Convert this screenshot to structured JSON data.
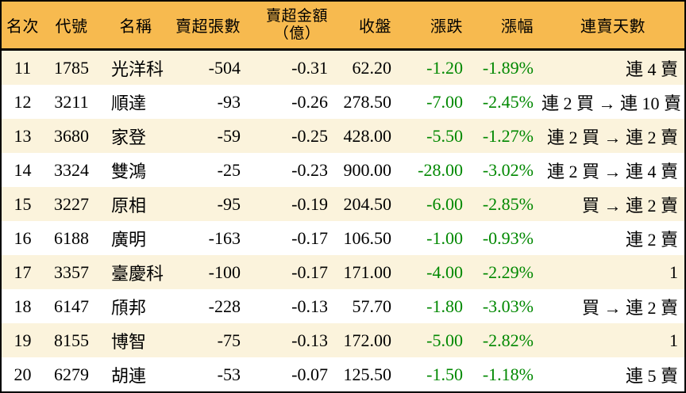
{
  "chart_data": {
    "type": "table",
    "columns": [
      {
        "key": "rank",
        "label": "名次"
      },
      {
        "key": "code",
        "label": "代號"
      },
      {
        "key": "name",
        "label": "名稱"
      },
      {
        "key": "sell_volume",
        "label": "賣超張數"
      },
      {
        "key": "sell_amount",
        "label": "賣超金額",
        "label2": "（億）"
      },
      {
        "key": "close",
        "label": "收盤"
      },
      {
        "key": "change",
        "label": "漲跌"
      },
      {
        "key": "change_pct",
        "label": "漲幅"
      },
      {
        "key": "streak",
        "label": "連賣天數"
      }
    ],
    "rows": [
      {
        "rank": "11",
        "code": "1785",
        "name": "光洋科",
        "sell_volume": "-504",
        "sell_amount": "-0.31",
        "close": "62.20",
        "change": "-1.20",
        "change_pct": "-1.89%",
        "streak": "連 4 賣"
      },
      {
        "rank": "12",
        "code": "3211",
        "name": "順達",
        "sell_volume": "-93",
        "sell_amount": "-0.26",
        "close": "278.50",
        "change": "-7.00",
        "change_pct": "-2.45%",
        "streak": "連 2 買 → 連 10 賣"
      },
      {
        "rank": "13",
        "code": "3680",
        "name": "家登",
        "sell_volume": "-59",
        "sell_amount": "-0.25",
        "close": "428.00",
        "change": "-5.50",
        "change_pct": "-1.27%",
        "streak": "連 2 買 → 連 2 賣"
      },
      {
        "rank": "14",
        "code": "3324",
        "name": "雙鴻",
        "sell_volume": "-25",
        "sell_amount": "-0.23",
        "close": "900.00",
        "change": "-28.00",
        "change_pct": "-3.02%",
        "streak": "連 2 買 → 連 4 賣"
      },
      {
        "rank": "15",
        "code": "3227",
        "name": "原相",
        "sell_volume": "-95",
        "sell_amount": "-0.19",
        "close": "204.50",
        "change": "-6.00",
        "change_pct": "-2.85%",
        "streak": "買 → 連 2 賣"
      },
      {
        "rank": "16",
        "code": "6188",
        "name": "廣明",
        "sell_volume": "-163",
        "sell_amount": "-0.17",
        "close": "106.50",
        "change": "-1.00",
        "change_pct": "-0.93%",
        "streak": "連 2 賣"
      },
      {
        "rank": "17",
        "code": "3357",
        "name": "臺慶科",
        "sell_volume": "-100",
        "sell_amount": "-0.17",
        "close": "171.00",
        "change": "-4.00",
        "change_pct": "-2.29%",
        "streak": "1"
      },
      {
        "rank": "18",
        "code": "6147",
        "name": "頎邦",
        "sell_volume": "-228",
        "sell_amount": "-0.13",
        "close": "57.70",
        "change": "-1.80",
        "change_pct": "-3.03%",
        "streak": "買 → 連 2 賣"
      },
      {
        "rank": "19",
        "code": "8155",
        "name": "博智",
        "sell_volume": "-75",
        "sell_amount": "-0.13",
        "close": "172.00",
        "change": "-5.00",
        "change_pct": "-2.82%",
        "streak": "1"
      },
      {
        "rank": "20",
        "code": "6279",
        "name": "胡連",
        "sell_volume": "-53",
        "sell_amount": "-0.07",
        "close": "125.50",
        "change": "-1.50",
        "change_pct": "-1.18%",
        "streak": "連 5 賣"
      }
    ]
  },
  "colors": {
    "header_bg": "#F7BA4F",
    "row_bg": "#FFFFFF",
    "row_alt_bg": "#FBF3DC",
    "negative": "#008800",
    "border": "#000000",
    "text": "#000000"
  }
}
